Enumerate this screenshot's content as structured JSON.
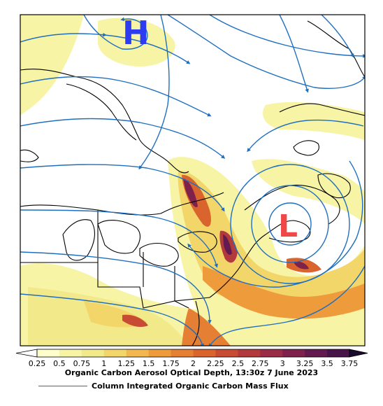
{
  "map": {
    "high_label": "H",
    "low_label": "L",
    "high_color": "#2d3cf0",
    "low_color": "#f04848",
    "streamline_color": "#1f6fc0",
    "coast_color": "#000000"
  },
  "colorbar": {
    "ticks": [
      "0.25",
      "0.5",
      "0.75",
      "1",
      "1.25",
      "1.5",
      "1.75",
      "2",
      "2.25",
      "2.5",
      "2.75",
      "3",
      "3.25",
      "3.5",
      "3.75"
    ],
    "colors": [
      "#ffffcc",
      "#f7f4a6",
      "#f2e98b",
      "#f2d66a",
      "#f2b84f",
      "#ee9b3c",
      "#e57f33",
      "#d9642e",
      "#c84c34",
      "#b23a3c",
      "#9a2c45",
      "#7e224c",
      "#631b4f",
      "#471449"
    ],
    "title": "Organic Carbon Aerosol Optical Depth, 13:30z 7 June 2023"
  },
  "legend": {
    "label": "Column Integrated Organic Carbon Mass Flux",
    "line_color": "#1f6fc0"
  }
}
